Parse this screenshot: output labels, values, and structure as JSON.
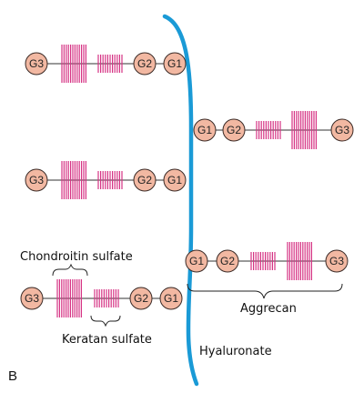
{
  "nodes": {
    "g1": "G1",
    "g2": "G2",
    "g3": "G3"
  },
  "labels": {
    "chondroitin": "Chondroitin sulfate",
    "keratan": "Keratan sulfate",
    "aggrecan": "Aggrecan",
    "hyaluronate": "Hyaluronate",
    "panel": "B"
  },
  "colors": {
    "backbone": "#1a9ad6",
    "glycan": "#d63384",
    "node_fill": "#f2b8a2"
  }
}
